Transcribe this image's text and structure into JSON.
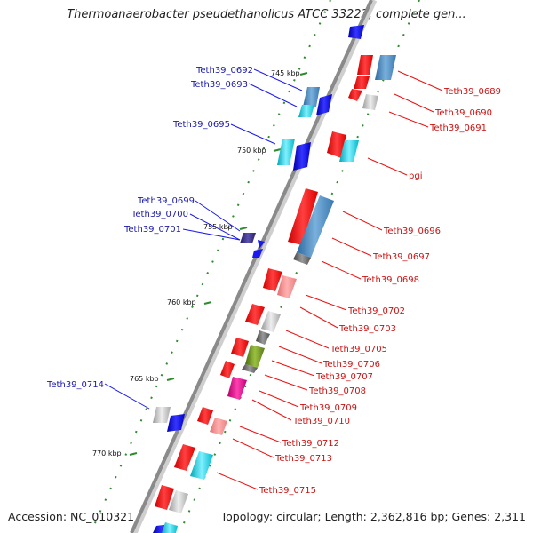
{
  "title": "Thermoanaerobacter pseudethanolicus ATCC 33223, complete gen...",
  "accession": "Accession: NC_010321",
  "summary": "Topology: circular; Length: 2,362,816 bp; Genes: 2,311",
  "ticks": [
    "745 kbp",
    "750 kbp",
    "755 kbp",
    "760 kbp",
    "765 kbp",
    "770 kbp"
  ],
  "genes_left": [
    "Teth39_0692",
    "Teth39_0693",
    "Teth39_0695",
    "Teth39_0699",
    "Teth39_0700",
    "Teth39_0701",
    "Teth39_0714"
  ],
  "genes_right": [
    "Teth39_0689",
    "Teth39_0690",
    "Teth39_0691",
    "pgi",
    "Teth39_0696",
    "Teth39_0697",
    "Teth39_0698",
    "Teth39_0702",
    "Teth39_0703",
    "Teth39_0705",
    "Teth39_0706",
    "Teth39_0707",
    "Teth39_0708",
    "Teth39_0709",
    "Teth39_0710",
    "Teth39_0712",
    "Teth39_0713",
    "Teth39_0715"
  ],
  "colors": {
    "backbone": "#8a8a8a",
    "left_label": "#1a1aaa",
    "right_label": "#cc1111",
    "dots": "#2e8b2e"
  }
}
